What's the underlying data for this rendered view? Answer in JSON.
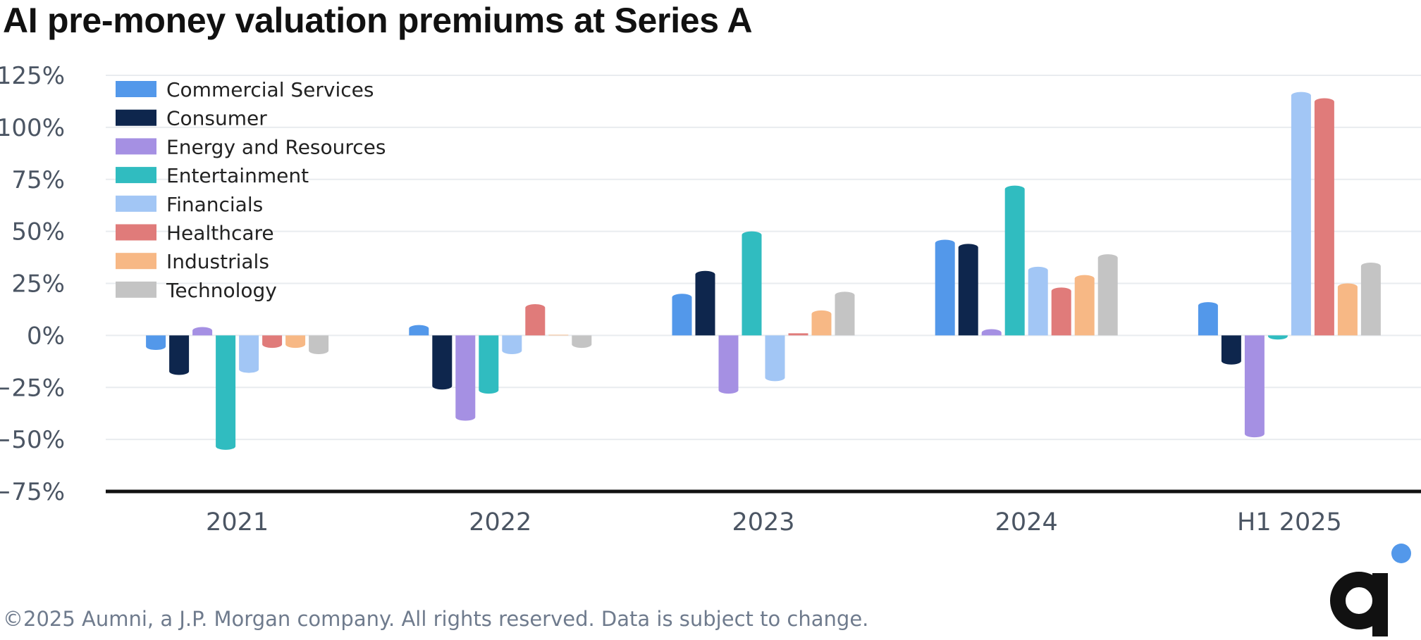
{
  "title": "AI pre-money valuation premiums at Series A",
  "footer": "©2025 Aumni, a J.P. Morgan company. All rights reserved. Data is subject to change.",
  "logo": {
    "icon": "aumni-logo-icon",
    "dot_color": "#5398ea",
    "letter_color": "#111111"
  },
  "chart_data": {
    "type": "bar",
    "categories": [
      "2021",
      "2022",
      "2023",
      "2024",
      "H1 2025"
    ],
    "ylim": [
      -75,
      125
    ],
    "yticks": [
      -75,
      -50,
      -25,
      0,
      25,
      50,
      75,
      100,
      125
    ],
    "ytick_labels": [
      "−75%",
      "−50%",
      "−25%",
      "0%",
      "25%",
      "50%",
      "75%",
      "100%",
      "125%"
    ],
    "grid": true,
    "legend_position": "top-left",
    "series": [
      {
        "name": "Commercial Services",
        "color": "#5398ea",
        "values": [
          -7,
          5,
          20,
          46,
          16
        ]
      },
      {
        "name": "Consumer",
        "color": "#0e264d",
        "values": [
          -19,
          -26,
          31,
          44,
          -14
        ]
      },
      {
        "name": "Energy and Resources",
        "color": "#a590e3",
        "values": [
          4,
          -41,
          -28,
          3,
          -49
        ]
      },
      {
        "name": "Entertainment",
        "color": "#30bcc0",
        "values": [
          -55,
          -28,
          50,
          72,
          -2
        ]
      },
      {
        "name": "Financials",
        "color": "#a2c6f5",
        "values": [
          -18,
          -9,
          -22,
          33,
          117
        ]
      },
      {
        "name": "Healthcare",
        "color": "#e07b7a",
        "values": [
          -6,
          15,
          1,
          23,
          114
        ]
      },
      {
        "name": "Industrials",
        "color": "#f7b885",
        "values": [
          -6,
          0.3,
          12,
          29,
          25
        ]
      },
      {
        "name": "Technology",
        "color": "#c4c4c4",
        "values": [
          -9,
          -6,
          21,
          39,
          35
        ]
      }
    ]
  }
}
